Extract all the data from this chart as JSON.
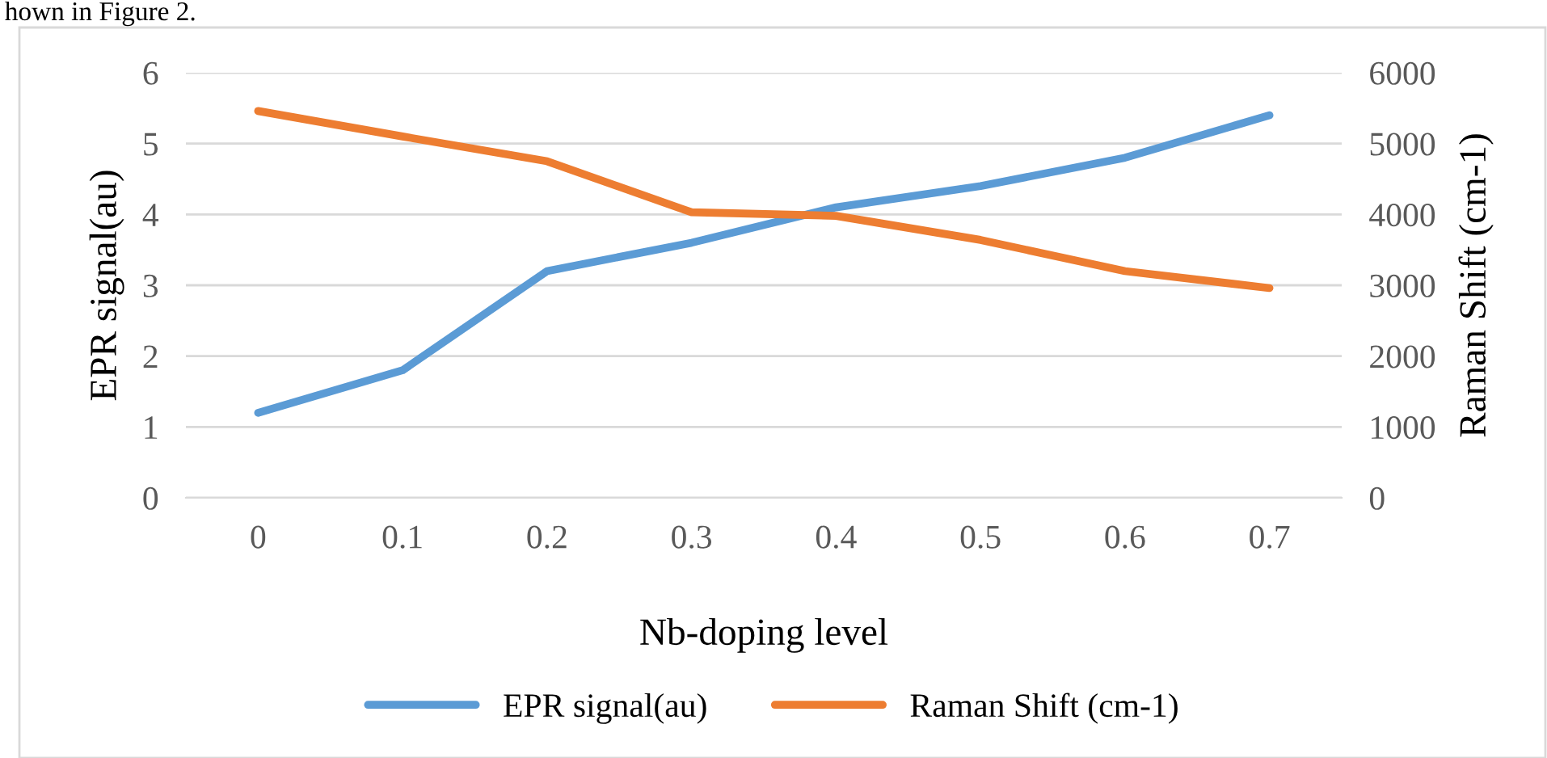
{
  "chart_data": {
    "type": "line",
    "categories": [
      "0",
      "0.1",
      "0.2",
      "0.3",
      "0.4",
      "0.5",
      "0.6",
      "0.7"
    ],
    "xlabel": "Nb-doping level",
    "ylabel": "EPR signal(au)",
    "y2label": "Raman Shift (cm-1)",
    "series": [
      {
        "name": "EPR signal(au)",
        "color": "#5b9bd5",
        "values": [
          1.2,
          1.8,
          3.2,
          3.6,
          4.1,
          4.4,
          4.8,
          5.4
        ]
      },
      {
        "name": "Raman Shift (cm-1)",
        "color": "#ed7d31",
        "axis": "y2",
        "values": [
          5460,
          5100,
          4750,
          4030,
          3980,
          3640,
          3200,
          2960
        ]
      }
    ],
    "ylim": [
      0,
      6
    ],
    "yticks": [
      0,
      1,
      2,
      3,
      4,
      5,
      6
    ],
    "y2lim": [
      0,
      6000
    ],
    "y2ticks": [
      0,
      1000,
      2000,
      3000,
      4000,
      5000,
      6000
    ],
    "grid": "y",
    "legend": "bottom",
    "marker": "none",
    "line_style": "solid",
    "annotations": [
      "hown in Figure 2."
    ]
  }
}
